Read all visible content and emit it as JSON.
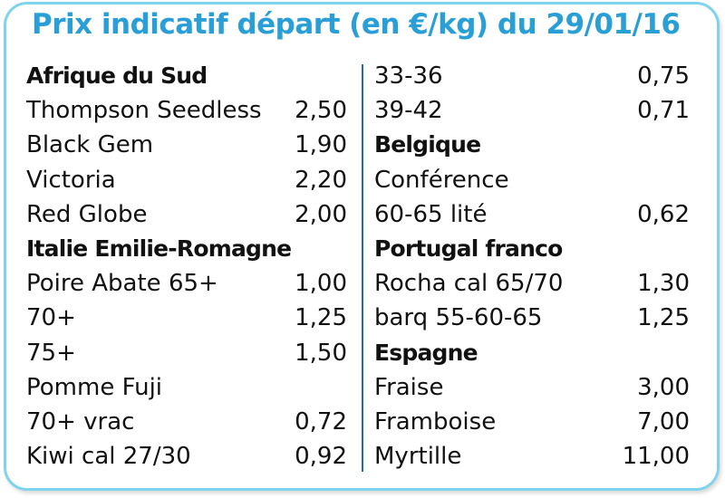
{
  "title": "Prix indicatif départ (en €/kg) du 29/01/16",
  "left_column": [
    {
      "label": "Afrique du Sud",
      "price": "",
      "header": true
    },
    {
      "label": "Thompson Seedless",
      "price": "2,50",
      "header": false
    },
    {
      "label": "Black Gem",
      "price": "1,90",
      "header": false
    },
    {
      "label": "Victoria",
      "price": "2,20",
      "header": false
    },
    {
      "label": "Red Globe",
      "price": "2,00",
      "header": false
    },
    {
      "label": "Italie Emilie-Romagne",
      "price": "",
      "header": true
    },
    {
      "label": "Poire Abate 65+",
      "price": "1,00",
      "header": false
    },
    {
      "label": "70+",
      "price": "1,25",
      "header": false
    },
    {
      "label": "75+",
      "price": "1,50",
      "header": false
    },
    {
      "label": "Pomme Fuji",
      "price": "",
      "header": false
    },
    {
      "label": "70+ vrac",
      "price": "0,72",
      "header": false
    },
    {
      "label": "Kiwi cal 27/30",
      "price": "0,92",
      "header": false
    }
  ],
  "right_column": [
    {
      "label": "33-36",
      "price": "0,75",
      "header": false
    },
    {
      "label": "39-42",
      "price": "0,71",
      "header": false
    },
    {
      "label": "Belgique",
      "price": "",
      "header": true
    },
    {
      "label": "Conférence",
      "price": "",
      "header": false
    },
    {
      "label": "60-65 lité",
      "price": "0,62",
      "header": false
    },
    {
      "label": "Portugal franco",
      "price": "",
      "header": true
    },
    {
      "label": "Rocha cal 65/70",
      "price": "1,30",
      "header": false
    },
    {
      "label": "barq 55-60-65",
      "price": "1,25",
      "header": false
    },
    {
      "label": "Espagne",
      "price": "",
      "header": true
    },
    {
      "label": "Fraise",
      "price": "3,00",
      "header": false
    },
    {
      "label": "Framboise",
      "price": "7,00",
      "header": false
    },
    {
      "label": "Myrtille",
      "price": "11,00",
      "header": false
    }
  ],
  "colors": {
    "title": "#2a9fd6",
    "border": "#7fd3ea",
    "divider": "#1f6f97",
    "text": "#111111"
  }
}
